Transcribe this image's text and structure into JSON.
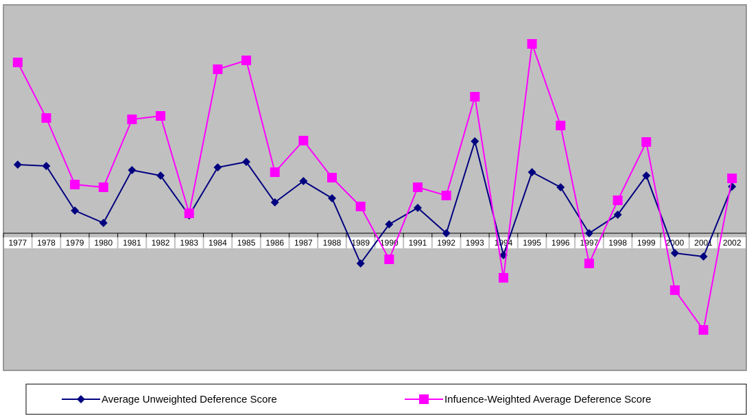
{
  "chart_data": {
    "type": "line",
    "categories": [
      "1977",
      "1978",
      "1979",
      "1980",
      "1981",
      "1982",
      "1983",
      "1984",
      "1985",
      "1986",
      "1987",
      "1988",
      "1989",
      "1990",
      "1991",
      "1992",
      "1993",
      "1994",
      "1995",
      "1996",
      "1997",
      "1998",
      "1999",
      "2000",
      "2001",
      "2002"
    ],
    "series": [
      {
        "name": "Average Unweighted Deference Score",
        "color": "#000080",
        "marker": "diamond",
        "values": [
          1.0,
          0.98,
          0.33,
          0.15,
          0.92,
          0.84,
          0.26,
          0.96,
          1.04,
          0.45,
          0.76,
          0.51,
          -0.44,
          0.13,
          0.37,
          0.0,
          1.34,
          -0.32,
          0.89,
          0.67,
          0.0,
          0.27,
          0.84,
          -0.29,
          -0.34,
          0.68
        ]
      },
      {
        "name": "Infuence-Weighted Average Deference Score",
        "color": "#ff00ff",
        "marker": "square",
        "values": [
          2.49,
          1.68,
          0.71,
          0.67,
          1.66,
          1.71,
          0.29,
          2.39,
          2.52,
          0.89,
          1.35,
          0.81,
          0.39,
          -0.38,
          0.67,
          0.55,
          1.99,
          -0.65,
          2.76,
          1.57,
          -0.44,
          0.48,
          1.33,
          -0.83,
          -1.41,
          0.8
        ]
      }
    ],
    "ylim": [
      -2,
      3.32
    ],
    "grid": false,
    "legend": "bottom"
  }
}
